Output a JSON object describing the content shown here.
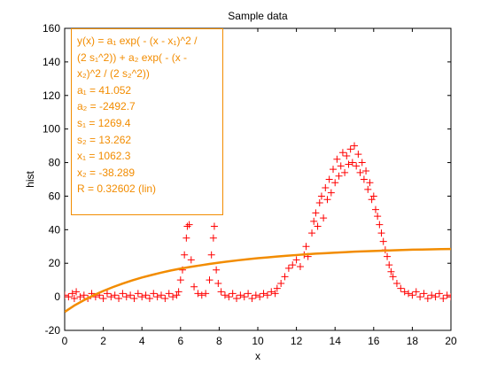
{
  "figure": {
    "background": "#ffffff"
  },
  "chart_data": {
    "type": "scatter",
    "title": "Sample data",
    "xlabel": "x",
    "ylabel": "hist",
    "xlim": [
      0,
      20
    ],
    "ylim": [
      -20,
      160
    ],
    "xticks": [
      0,
      2,
      4,
      6,
      8,
      10,
      12,
      14,
      16,
      18,
      20
    ],
    "yticks": [
      -20,
      0,
      20,
      40,
      60,
      80,
      100,
      120,
      140,
      160
    ],
    "grid": false,
    "series": [
      {
        "kind": "scatter",
        "marker": "+",
        "color": "#ff0000",
        "points": [
          [
            0.0,
            1
          ],
          [
            0.2,
            0
          ],
          [
            0.4,
            2
          ],
          [
            0.5,
            -1
          ],
          [
            0.6,
            3
          ],
          [
            0.8,
            0
          ],
          [
            1.0,
            1
          ],
          [
            1.2,
            -1
          ],
          [
            1.4,
            2
          ],
          [
            1.6,
            0
          ],
          [
            1.8,
            1
          ],
          [
            2.0,
            -1
          ],
          [
            2.2,
            2
          ],
          [
            2.4,
            0
          ],
          [
            2.6,
            1
          ],
          [
            2.8,
            -1
          ],
          [
            3.0,
            2
          ],
          [
            3.2,
            0
          ],
          [
            3.4,
            1
          ],
          [
            3.6,
            -1
          ],
          [
            3.8,
            2
          ],
          [
            4.0,
            0
          ],
          [
            4.2,
            1
          ],
          [
            4.4,
            -1
          ],
          [
            4.6,
            2
          ],
          [
            4.8,
            0
          ],
          [
            5.0,
            1
          ],
          [
            5.2,
            -1
          ],
          [
            5.4,
            2
          ],
          [
            5.6,
            0
          ],
          [
            5.8,
            1
          ],
          [
            5.9,
            3
          ],
          [
            6.0,
            10
          ],
          [
            6.1,
            16
          ],
          [
            6.2,
            25
          ],
          [
            6.3,
            35
          ],
          [
            6.35,
            42
          ],
          [
            6.45,
            43
          ],
          [
            6.55,
            22
          ],
          [
            6.7,
            6
          ],
          [
            6.9,
            2
          ],
          [
            7.1,
            1
          ],
          [
            7.3,
            2
          ],
          [
            7.5,
            10
          ],
          [
            7.6,
            25
          ],
          [
            7.7,
            35
          ],
          [
            7.75,
            42
          ],
          [
            7.85,
            16
          ],
          [
            7.95,
            8
          ],
          [
            8.1,
            3
          ],
          [
            8.3,
            1
          ],
          [
            8.5,
            0
          ],
          [
            8.7,
            2
          ],
          [
            8.9,
            -1
          ],
          [
            9.1,
            1
          ],
          [
            9.3,
            0
          ],
          [
            9.5,
            2
          ],
          [
            9.7,
            -1
          ],
          [
            9.9,
            1
          ],
          [
            10.1,
            0
          ],
          [
            10.3,
            2
          ],
          [
            10.5,
            1
          ],
          [
            10.7,
            3
          ],
          [
            10.9,
            2
          ],
          [
            11.0,
            5
          ],
          [
            11.2,
            8
          ],
          [
            11.4,
            12
          ],
          [
            11.6,
            17
          ],
          [
            11.8,
            19
          ],
          [
            12.0,
            22
          ],
          [
            12.2,
            18
          ],
          [
            12.4,
            25
          ],
          [
            12.5,
            30
          ],
          [
            12.6,
            24
          ],
          [
            12.8,
            38
          ],
          [
            12.9,
            45
          ],
          [
            13.0,
            50
          ],
          [
            13.1,
            42
          ],
          [
            13.2,
            56
          ],
          [
            13.3,
            60
          ],
          [
            13.4,
            47
          ],
          [
            13.5,
            65
          ],
          [
            13.6,
            58
          ],
          [
            13.7,
            70
          ],
          [
            13.8,
            62
          ],
          [
            13.9,
            76
          ],
          [
            14.0,
            68
          ],
          [
            14.1,
            82
          ],
          [
            14.2,
            72
          ],
          [
            14.3,
            78
          ],
          [
            14.4,
            86
          ],
          [
            14.5,
            74
          ],
          [
            14.6,
            84
          ],
          [
            14.7,
            79
          ],
          [
            14.8,
            88
          ],
          [
            14.9,
            80
          ],
          [
            15.0,
            90
          ],
          [
            15.1,
            78
          ],
          [
            15.2,
            85
          ],
          [
            15.3,
            74
          ],
          [
            15.4,
            80
          ],
          [
            15.5,
            70
          ],
          [
            15.6,
            75
          ],
          [
            15.7,
            64
          ],
          [
            15.8,
            68
          ],
          [
            15.9,
            58
          ],
          [
            16.0,
            60
          ],
          [
            16.1,
            52
          ],
          [
            16.2,
            48
          ],
          [
            16.3,
            43
          ],
          [
            16.4,
            38
          ],
          [
            16.5,
            33
          ],
          [
            16.6,
            28
          ],
          [
            16.7,
            24
          ],
          [
            16.8,
            19
          ],
          [
            16.9,
            15
          ],
          [
            17.0,
            12
          ],
          [
            17.2,
            8
          ],
          [
            17.4,
            5
          ],
          [
            17.6,
            3
          ],
          [
            17.8,
            2
          ],
          [
            18.0,
            1
          ],
          [
            18.2,
            3
          ],
          [
            18.4,
            0
          ],
          [
            18.6,
            2
          ],
          [
            18.8,
            -1
          ],
          [
            19.0,
            1
          ],
          [
            19.2,
            0
          ],
          [
            19.4,
            2
          ],
          [
            19.6,
            -1
          ],
          [
            19.8,
            1
          ],
          [
            20.0,
            0
          ]
        ]
      },
      {
        "kind": "line",
        "color": "#f28c00",
        "x": [
          0,
          0.5,
          1,
          1.5,
          2,
          2.5,
          3,
          3.5,
          4,
          4.5,
          5,
          5.5,
          6,
          6.5,
          7,
          7.5,
          8,
          8.5,
          9,
          9.5,
          10,
          10.5,
          11,
          11.5,
          12,
          12.5,
          13,
          13.5,
          14,
          14.5,
          15,
          15.5,
          16,
          16.5,
          17,
          17.5,
          18,
          18.5,
          19,
          19.5,
          20
        ],
        "y": [
          -9.0,
          -5.2,
          -2.0,
          0.9,
          3.5,
          5.8,
          7.9,
          9.8,
          11.5,
          13.0,
          14.4,
          15.7,
          16.8,
          17.8,
          18.7,
          19.6,
          20.4,
          21.1,
          21.8,
          22.4,
          23.0,
          23.5,
          24.0,
          24.5,
          24.9,
          25.3,
          25.7,
          26.0,
          26.3,
          26.6,
          26.9,
          27.1,
          27.3,
          27.5,
          27.7,
          27.9,
          28.1,
          28.2,
          28.3,
          28.4,
          28.5
        ]
      }
    ]
  },
  "fit_box": {
    "equation_lines": [
      "y(x) = a₁ exp( - (x - x₁)^2 /",
      "(2 s₁^2)) + a₂ exp( - (x -",
      "x₂)^2 / (2 s₂^2))"
    ],
    "params": [
      "a₁ = 41.052",
      "a₂ = -2492.7",
      "s₁ = 1269.4",
      "s₂ = 13.262",
      "x₁ = 1062.3",
      "x₂ = -38.289",
      "R = 0.32602  (lin)"
    ],
    "color": "#f28c00"
  }
}
